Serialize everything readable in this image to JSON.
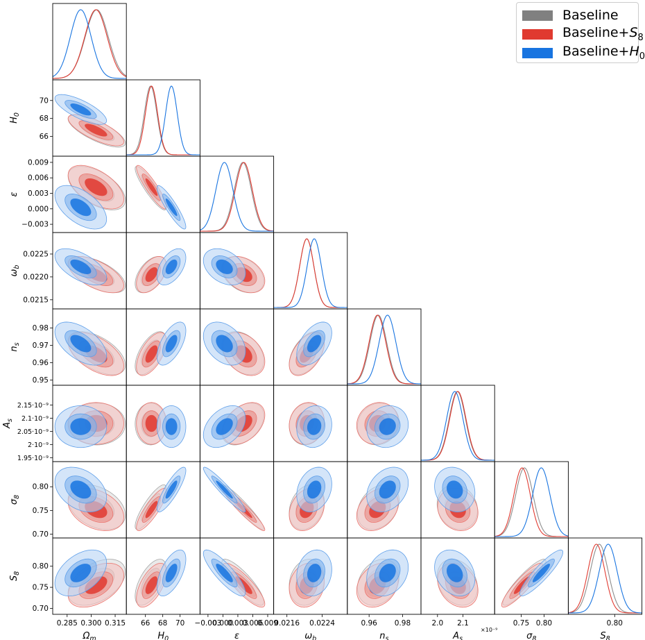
{
  "chart_data": {
    "type": "triangle",
    "legend": [
      {
        "key": "baseline",
        "label": "Baseline",
        "sub": "",
        "color": "#808080"
      },
      {
        "key": "s8",
        "label": "Baseline+",
        "sub": "S8",
        "color": "#e03a30"
      },
      {
        "key": "h0",
        "label": "Baseline+",
        "sub": "H0",
        "color": "#1874e0"
      }
    ],
    "parameters": [
      {
        "id": "Om",
        "label": "Ω",
        "sub": "m",
        "range": [
          0.276,
          0.322
        ],
        "ticks": [
          0.285,
          0.3,
          0.315
        ],
        "tick_labels": [
          "0.285",
          "0.300",
          "0.315"
        ]
      },
      {
        "id": "H0",
        "label": "H",
        "sub": "0",
        "range": [
          63.8,
          72.3
        ],
        "ticks": [
          66,
          68,
          70
        ],
        "tick_labels": [
          "66",
          "68",
          "70"
        ]
      },
      {
        "id": "eps",
        "label": "ε",
        "sub": "",
        "range": [
          -0.0046,
          0.0102
        ],
        "ticks": [
          -0.003,
          0.0,
          0.003,
          0.006,
          0.009
        ],
        "tick_labels": [
          "−0.003",
          "0.000",
          "0.003",
          "0.006",
          "0.009"
        ]
      },
      {
        "id": "wb",
        "label": "ω",
        "sub": "b",
        "range": [
          0.0213,
          0.02297
        ],
        "ticks": [
          0.0215,
          0.022,
          0.0225
        ],
        "tick_labels": [
          "0.0215",
          "0.0220",
          "0.0225"
        ],
        "bottom_ticks": [
          0.0216,
          0.0224
        ],
        "bottom_tick_labels": [
          "0.0216",
          "0.0224"
        ]
      },
      {
        "id": "ns",
        "label": "n",
        "sub": "s",
        "range": [
          0.947,
          0.991
        ],
        "ticks": [
          0.95,
          0.96,
          0.97,
          0.98
        ],
        "tick_labels": [
          "0.95",
          "0.96",
          "0.97",
          "0.98"
        ],
        "bottom_ticks": [
          0.96,
          0.98
        ],
        "bottom_tick_labels": [
          "0.96",
          "0.98"
        ]
      },
      {
        "id": "As",
        "label": "A",
        "sub": "s",
        "range": [
          1.935,
          2.225
        ],
        "ticks": [
          1.95,
          2.0,
          2.05,
          2.1,
          2.15
        ],
        "tick_labels": [
          "1.95·10⁻⁹",
          "2·10⁻⁹",
          "2.05·10⁻⁹",
          "2.1·10⁻⁹",
          "2.15·10⁻⁹"
        ],
        "bottom_ticks": [
          2.0,
          2.1
        ],
        "bottom_tick_labels": [
          "2.0",
          "2.1"
        ],
        "offset_label": "×10⁻⁹"
      },
      {
        "id": "s8",
        "label": "σ",
        "sub": "8",
        "range": [
          0.692,
          0.853
        ],
        "ticks": [
          0.7,
          0.75,
          0.8
        ],
        "tick_labels": [
          "0.70",
          "0.75",
          "0.80"
        ],
        "bottom_ticks": [
          0.75,
          0.8
        ],
        "bottom_tick_labels": [
          "0.75",
          "0.80"
        ]
      },
      {
        "id": "S8",
        "label": "S",
        "sub": "8",
        "range": [
          0.686,
          0.867
        ],
        "ticks": [
          0.7,
          0.75,
          0.8
        ],
        "tick_labels": [
          "0.70",
          "0.75",
          "0.80"
        ],
        "bottom_ticks": [
          0.8
        ],
        "bottom_tick_labels": [
          "0.80"
        ]
      }
    ],
    "correlation": [
      [
        1.0,
        -0.75,
        -0.55,
        -0.6,
        -0.55,
        0.0,
        -0.35,
        0.45
      ],
      [
        -0.75,
        1.0,
        -0.9,
        0.5,
        0.6,
        0.0,
        0.85,
        0.6
      ],
      [
        -0.55,
        -0.9,
        1.0,
        -0.35,
        -0.35,
        0.4,
        -0.95,
        -0.85
      ],
      [
        -0.6,
        0.5,
        -0.35,
        1.0,
        0.5,
        0.1,
        0.25,
        0.15
      ],
      [
        -0.55,
        0.6,
        -0.35,
        0.5,
        1.0,
        0.1,
        0.3,
        0.25
      ],
      [
        0.0,
        0.0,
        0.4,
        0.1,
        0.1,
        1.0,
        -0.15,
        -0.25
      ],
      [
        -0.35,
        0.85,
        -0.95,
        0.25,
        0.3,
        -0.15,
        1.0,
        0.9
      ],
      [
        0.45,
        0.6,
        -0.85,
        0.15,
        0.25,
        -0.25,
        0.9,
        1.0
      ]
    ],
    "series": [
      {
        "key": "baseline",
        "name": "Baseline",
        "mean": [
          0.3035,
          66.6,
          0.004,
          0.02205,
          0.9655,
          2.078,
          0.757,
          0.762
        ],
        "sd": [
          0.0072,
          0.72,
          0.0017,
          0.00016,
          0.005,
          0.032,
          0.019,
          0.022
        ]
      },
      {
        "key": "s8",
        "name": "Baseline+S8",
        "mean": [
          0.303,
          66.7,
          0.0042,
          0.02205,
          0.965,
          2.08,
          0.752,
          0.755
        ],
        "sd": [
          0.007,
          0.7,
          0.0017,
          0.00016,
          0.005,
          0.032,
          0.018,
          0.021
        ]
      },
      {
        "key": "h0",
        "name": "Baseline+H0",
        "mean": [
          0.2935,
          69.0,
          0.0003,
          0.02222,
          0.971,
          2.068,
          0.794,
          0.784
        ],
        "sd": [
          0.0065,
          0.67,
          0.0017,
          0.00016,
          0.005,
          0.032,
          0.019,
          0.022
        ]
      }
    ]
  }
}
